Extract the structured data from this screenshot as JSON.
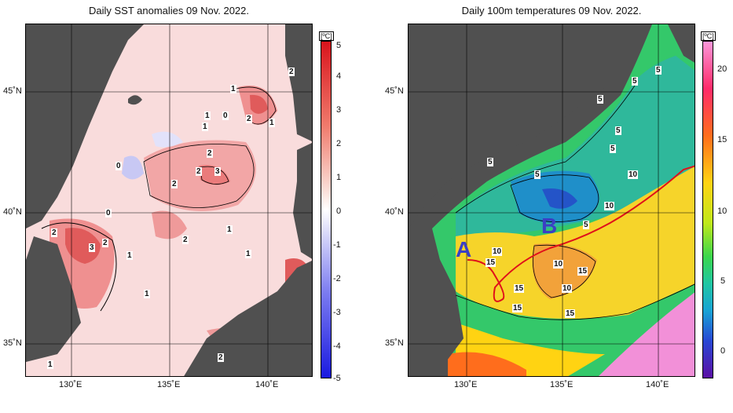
{
  "left_panel": {
    "title": "Daily SST anomalies 09 Nov. 2022.",
    "unit": "[ºC]",
    "colorbar_labels": [
      "5",
      "4",
      "3",
      "2",
      "1",
      "0",
      "-1",
      "-2",
      "-3",
      "-4",
      "-5"
    ],
    "lat_ticks": [
      "45˚N",
      "40˚N",
      "35˚N"
    ],
    "lon_ticks": [
      "130˚E",
      "135˚E",
      "140˚E"
    ],
    "contour_labels": [
      "2",
      "1",
      "0",
      "1",
      "2",
      "1",
      "1",
      "0",
      "2",
      "2",
      "3",
      "2",
      "0",
      "2",
      "3",
      "2",
      "0",
      "2",
      "1",
      "1",
      "1",
      "1",
      "2",
      "1"
    ],
    "colors": {
      "positive": "#d8141c",
      "negative": "#1a1ae0",
      "land": "#505050"
    }
  },
  "right_panel": {
    "title": "Daily 100m temperatures 09 Nov. 2022.",
    "unit": "[ºC]",
    "colorbar_labels": [
      "20",
      "15",
      "10",
      "5",
      "0"
    ],
    "lat_ticks": [
      "45˚N",
      "40˚N",
      "35˚N"
    ],
    "lon_ticks": [
      "130˚E",
      "135˚E",
      "140˚E"
    ],
    "contour_labels": [
      "5",
      "5",
      "5",
      "5",
      "5",
      "5",
      "5",
      "10",
      "10",
      "5",
      "10",
      "15",
      "10",
      "15",
      "15",
      "10",
      "15",
      "15"
    ],
    "section_labels": [
      "A",
      "B"
    ],
    "colors": {
      "section_line": "#e0101a",
      "land": "#505050"
    }
  }
}
